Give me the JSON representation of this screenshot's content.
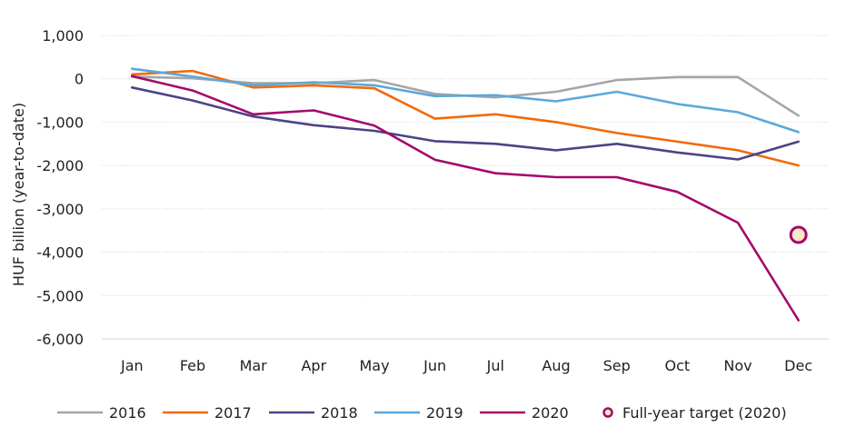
{
  "chart_data": {
    "type": "line",
    "title": "",
    "xlabel": "",
    "ylabel": "HUF billion (year-to-date)",
    "categories": [
      "Jan",
      "Feb",
      "Mar",
      "Apr",
      "May",
      "Jun",
      "Jul",
      "Aug",
      "Sep",
      "Oct",
      "Nov",
      "Dec"
    ],
    "yticks": [
      1000,
      0,
      -1000,
      -2000,
      -3000,
      -4000,
      -5000,
      -6000
    ],
    "ytick_labels": [
      "1,000",
      "0",
      "-1,000",
      "-2,000",
      "-3,000",
      "-4,000",
      "-5,000",
      "-6,000"
    ],
    "ylim": [
      -6000,
      1000
    ],
    "grid": true,
    "legend_position": "bottom",
    "series": [
      {
        "name": "2016",
        "color": "#a6a6a6",
        "values": [
          50,
          10,
          -100,
          -100,
          -30,
          -350,
          -430,
          -300,
          -30,
          40,
          40,
          -850
        ]
      },
      {
        "name": "2017",
        "color": "#f26a0a",
        "values": [
          100,
          180,
          -200,
          -150,
          -220,
          -920,
          -820,
          -1000,
          -1250,
          -1450,
          -1650,
          -2000
        ]
      },
      {
        "name": "2018",
        "color": "#4a4486",
        "values": [
          -200,
          -500,
          -870,
          -1070,
          -1200,
          -1440,
          -1500,
          -1650,
          -1500,
          -1700,
          -1860,
          -1450
        ]
      },
      {
        "name": "2019",
        "color": "#5aa8dc",
        "values": [
          230,
          50,
          -150,
          -80,
          -150,
          -400,
          -380,
          -520,
          -300,
          -580,
          -770,
          -1230
        ]
      },
      {
        "name": "2020",
        "color": "#a3096b",
        "values": [
          60,
          -270,
          -820,
          -730,
          -1080,
          -1870,
          -2180,
          -2270,
          -2270,
          -2610,
          -3320,
          -5570
        ]
      }
    ],
    "annotations": [
      {
        "name": "Full-year target (2020)",
        "category": "Dec",
        "value": -3600,
        "marker": "circle",
        "stroke": "#a3096b",
        "fill": "#fbe8c8"
      }
    ]
  }
}
